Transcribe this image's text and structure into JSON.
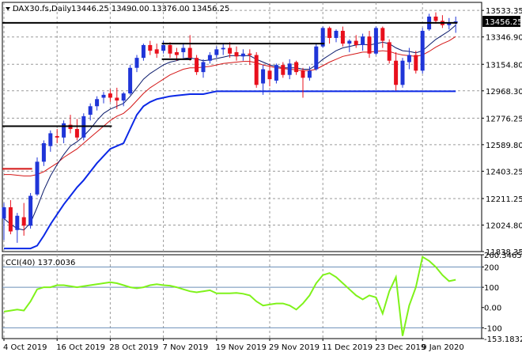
{
  "header": {
    "symbol": "DAX30.fs,Daily",
    "ohlc": "13446.25 13490.00 13376.00 13456.25"
  },
  "colors": {
    "bull": "#1f35d8",
    "bear": "#e8101c",
    "band_fast": "#0a1a6b",
    "band_mid": "#d41616",
    "band_slow": "#0b28e6",
    "cci_line": "#7ff21a",
    "hline": "#000000",
    "price_tag_bg": "#000000",
    "price_tag_fg": "#ffffff"
  },
  "chart_data": [
    {
      "type": "candlestick",
      "panel": "price",
      "y_ticks": [
        "13533.35",
        "13346.90",
        "13154.80",
        "12968.30",
        "12776.25",
        "12589.80",
        "12403.25",
        "12211.25",
        "12024.80",
        "11838.35"
      ],
      "ylim": [
        11838.35,
        13590
      ],
      "current_price_label": "13456.25",
      "x_labels": [
        "4 Oct 2019",
        "16 Oct 2019",
        "28 Oct 2019",
        "7 Nov 2019",
        "19 Nov 2019",
        "29 Nov 2019",
        "11 Dec 2019",
        "23 Dec 2019",
        "9 Jan 2020"
      ],
      "x_label_index": [
        0,
        8,
        16,
        24,
        32,
        40,
        48,
        56,
        63
      ],
      "candles": [
        [
          12070,
          12180,
          11920,
          12150
        ],
        [
          12150,
          12200,
          11960,
          11980
        ],
        [
          11990,
          12110,
          11900,
          12090
        ],
        [
          12080,
          12180,
          11950,
          12020
        ],
        [
          12020,
          12250,
          12000,
          12230
        ],
        [
          12240,
          12500,
          12230,
          12470
        ],
        [
          12470,
          12620,
          12440,
          12600
        ],
        [
          12580,
          12690,
          12540,
          12670
        ],
        [
          12650,
          12700,
          12600,
          12640
        ],
        [
          12640,
          12760,
          12600,
          12740
        ],
        [
          12730,
          12800,
          12670,
          12700
        ],
        [
          12700,
          12770,
          12620,
          12640
        ],
        [
          12640,
          12810,
          12620,
          12790
        ],
        [
          12800,
          12880,
          12760,
          12860
        ],
        [
          12860,
          12930,
          12830,
          12910
        ],
        [
          12920,
          12960,
          12880,
          12940
        ],
        [
          12950,
          12980,
          12890,
          12920
        ],
        [
          12920,
          12990,
          12840,
          12900
        ],
        [
          12900,
          12960,
          12860,
          12950
        ],
        [
          12950,
          13150,
          12940,
          13130
        ],
        [
          13130,
          13220,
          13100,
          13200
        ],
        [
          13200,
          13300,
          13180,
          13290
        ],
        [
          13290,
          13320,
          13220,
          13250
        ],
        [
          13260,
          13300,
          13200,
          13230
        ],
        [
          13250,
          13320,
          13230,
          13290
        ],
        [
          13290,
          13310,
          13200,
          13230
        ],
        [
          13240,
          13270,
          13180,
          13220
        ],
        [
          13240,
          13300,
          13200,
          13270
        ],
        [
          13270,
          13360,
          13180,
          13200
        ],
        [
          13200,
          13220,
          13080,
          13100
        ],
        [
          13100,
          13190,
          13060,
          13170
        ],
        [
          13180,
          13240,
          13160,
          13220
        ],
        [
          13220,
          13280,
          13200,
          13260
        ],
        [
          13260,
          13300,
          13220,
          13270
        ],
        [
          13270,
          13310,
          13200,
          13230
        ],
        [
          13240,
          13280,
          13180,
          13210
        ],
        [
          13210,
          13260,
          13180,
          13230
        ],
        [
          13230,
          13260,
          13150,
          13220
        ],
        [
          13220,
          13240,
          12990,
          13010
        ],
        [
          13020,
          13150,
          12940,
          13120
        ],
        [
          13110,
          13160,
          13000,
          13050
        ],
        [
          13040,
          13160,
          13020,
          13150
        ],
        [
          13150,
          13170,
          13060,
          13080
        ],
        [
          13080,
          13190,
          13050,
          13160
        ],
        [
          13170,
          13180,
          13080,
          13100
        ],
        [
          13110,
          13130,
          12920,
          13060
        ],
        [
          13060,
          13140,
          13040,
          13110
        ],
        [
          13120,
          13300,
          13110,
          13280
        ],
        [
          13280,
          13420,
          13270,
          13410
        ],
        [
          13410,
          13420,
          13300,
          13340
        ],
        [
          13340,
          13400,
          13310,
          13390
        ],
        [
          13390,
          13420,
          13280,
          13300
        ],
        [
          13300,
          13330,
          13240,
          13320
        ],
        [
          13320,
          13360,
          13270,
          13290
        ],
        [
          13290,
          13370,
          13250,
          13350
        ],
        [
          13350,
          13390,
          13200,
          13230
        ],
        [
          13230,
          13420,
          13220,
          13410
        ],
        [
          13410,
          13420,
          13270,
          13320
        ],
        [
          13310,
          13330,
          13160,
          13180
        ],
        [
          13180,
          13240,
          12970,
          13010
        ],
        [
          13010,
          13200,
          12990,
          13180
        ],
        [
          13170,
          13270,
          13120,
          13220
        ],
        [
          13220,
          13250,
          13090,
          13110
        ],
        [
          13110,
          13410,
          13090,
          13390
        ],
        [
          13400,
          13510,
          13390,
          13490
        ],
        [
          13490,
          13520,
          13440,
          13460
        ],
        [
          13460,
          13500,
          13410,
          13430
        ],
        [
          13430,
          13480,
          13400,
          13450
        ],
        [
          13446.25,
          13490,
          13376,
          13456.25
        ]
      ],
      "band_fast": [
        12070,
        12030,
        12000,
        11990,
        12040,
        12150,
        12270,
        12370,
        12450,
        12520,
        12580,
        12610,
        12650,
        12700,
        12760,
        12810,
        12840,
        12860,
        12880,
        12930,
        12990,
        13050,
        13090,
        13120,
        13150,
        13170,
        13180,
        13195,
        13200,
        13190,
        13180,
        13185,
        13195,
        13205,
        13215,
        13215,
        13215,
        13215,
        13190,
        13170,
        13150,
        13140,
        13130,
        13130,
        13130,
        13120,
        13120,
        13150,
        13190,
        13220,
        13250,
        13270,
        13280,
        13290,
        13295,
        13290,
        13300,
        13310,
        13300,
        13270,
        13250,
        13245,
        13235,
        13250,
        13290,
        13330,
        13360,
        13390,
        13430
      ],
      "band_mid": [
        12380,
        12380,
        12375,
        12370,
        12370,
        12380,
        12400,
        12430,
        12460,
        12500,
        12530,
        12560,
        12600,
        12640,
        12680,
        12720,
        12760,
        12790,
        12810,
        12850,
        12900,
        12950,
        12990,
        13020,
        13050,
        13080,
        13100,
        13120,
        13130,
        13130,
        13135,
        13140,
        13150,
        13160,
        13165,
        13170,
        13175,
        13175,
        13165,
        13150,
        13140,
        13130,
        13125,
        13120,
        13115,
        13110,
        13110,
        13120,
        13145,
        13170,
        13190,
        13210,
        13220,
        13230,
        13240,
        13240,
        13245,
        13250,
        13245,
        13230,
        13220,
        13215,
        13210,
        13220,
        13245,
        13275,
        13300,
        13320,
        13350
      ],
      "band_slow": [
        11860,
        11860,
        11860,
        11860,
        11860,
        11880,
        11950,
        12030,
        12100,
        12170,
        12230,
        12290,
        12340,
        12400,
        12460,
        12510,
        12560,
        12580,
        12600,
        12700,
        12800,
        12860,
        12890,
        12910,
        12920,
        12930,
        12935,
        12940,
        12945,
        12945,
        12945,
        12955,
        12965,
        12965,
        12965,
        12965,
        12965,
        12965,
        12965,
        12965,
        12965,
        12965,
        12965,
        12965,
        12965,
        12965,
        12965,
        12965,
        12965,
        12965,
        12965,
        12965,
        12965,
        12965,
        12965,
        12965,
        12965,
        12965,
        12965,
        12965,
        12965,
        12965,
        12965,
        12965,
        12965,
        12965,
        12965,
        12965,
        12965
      ],
      "hlines": [
        {
          "value": 13446.25,
          "from_index": 0,
          "to_index": 68
        },
        {
          "value": 12720,
          "from_index": 0,
          "to_index": 16
        },
        {
          "value": 12420,
          "from_index": 0,
          "to_index": 4
        },
        {
          "value": 13300,
          "from_index": 24,
          "to_index": 48
        },
        {
          "value": 13190,
          "from_index": 24,
          "to_index": 28
        }
      ]
    },
    {
      "type": "line",
      "panel": "indicator",
      "label": "CCI(40) 137.0036",
      "y_ticks": [
        "260.3465",
        "200",
        "100",
        "0.00",
        "-100",
        "-153.1832"
      ],
      "levels": [
        200,
        100,
        -100
      ],
      "ylim": [
        -153.1832,
        260.3465
      ],
      "values": [
        -20,
        -15,
        -10,
        -15,
        30,
        90,
        100,
        100,
        110,
        110,
        105,
        100,
        105,
        110,
        115,
        120,
        125,
        120,
        110,
        100,
        95,
        100,
        110,
        115,
        110,
        108,
        100,
        90,
        80,
        75,
        80,
        85,
        70,
        70,
        70,
        72,
        68,
        60,
        30,
        10,
        15,
        20,
        20,
        10,
        -10,
        20,
        60,
        120,
        160,
        170,
        150,
        120,
        90,
        60,
        40,
        60,
        50,
        -30,
        80,
        150,
        -140,
        10,
        100,
        250,
        230,
        200,
        160,
        130,
        137
      ]
    }
  ]
}
